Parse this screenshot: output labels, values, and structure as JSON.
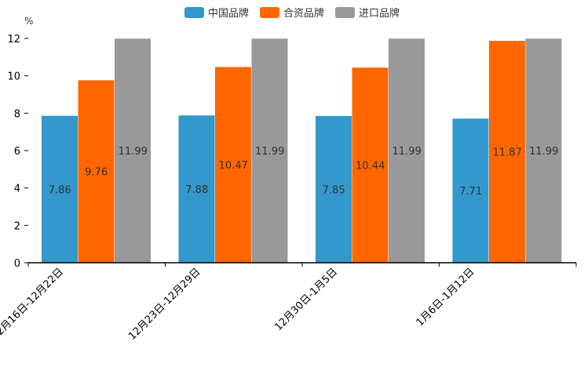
{
  "chart_data": {
    "type": "bar",
    "unit": "%",
    "categories": [
      "12月16日-12月22日",
      "12月23日-12月29日",
      "12月30日-1月5日",
      "1月6日-1月12日"
    ],
    "series": [
      {
        "name": "中国品牌",
        "color": "#3398CC",
        "values": [
          7.86,
          7.88,
          7.85,
          7.71
        ]
      },
      {
        "name": "合资品牌",
        "color": "#FF6600",
        "values": [
          9.76,
          10.47,
          10.44,
          11.87
        ]
      },
      {
        "name": "进口品牌",
        "color": "#999999",
        "values": [
          11.99,
          11.99,
          11.99,
          11.99
        ]
      }
    ],
    "ylim": [
      0,
      12
    ],
    "yticks": [
      "0",
      "2",
      "4",
      "6",
      "8",
      "10",
      "12"
    ],
    "legend_position": "top-center"
  }
}
